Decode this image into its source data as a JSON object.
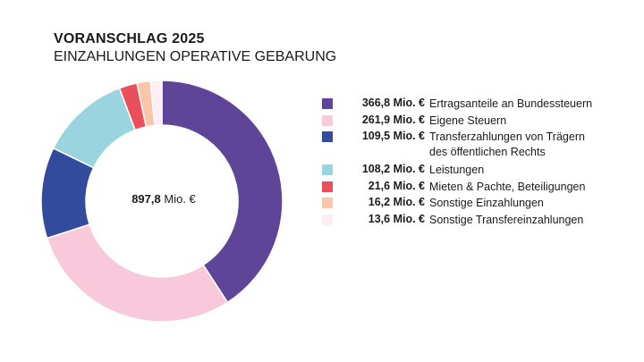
{
  "title": "VORANSCHLAG 2025",
  "subtitle": "EINZAHLUNGEN OPERATIVE GEBARUNG",
  "chart_data": {
    "type": "pie",
    "donut": true,
    "center_label": {
      "value": "897,8",
      "unit": "Mio. €"
    },
    "legend_position": "right",
    "categories": [
      "Ertragsanteile an Bundessteuern",
      "Eigene Steuern",
      "Transferzahlungen von Trägern des öffentlichen Rechts",
      "Leistungen",
      "Mieten & Pachte, Beteiligungen",
      "Sonstige Einzahlungen",
      "Sonstige Transfereinzahlungen"
    ],
    "values": [
      366.8,
      261.9,
      109.5,
      108.2,
      21.6,
      16.2,
      13.6
    ],
    "value_labels": [
      "366,8 Mio. €",
      "261,9 Mio. €",
      "109,5 Mio. €",
      "108,2 Mio. €",
      "21,6 Mio. €",
      "16,2 Mio. €",
      "13,6 Mio. €"
    ],
    "colors": [
      "#5f4598",
      "#f7c9db",
      "#334b9c",
      "#9ad5df",
      "#e9505b",
      "#f9c6a9",
      "#fdeef3"
    ]
  }
}
